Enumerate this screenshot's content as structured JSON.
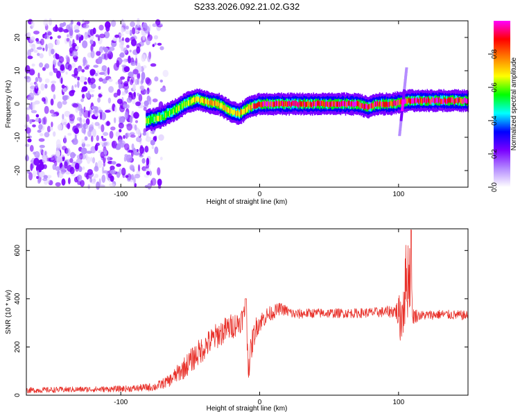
{
  "title": "S233.2026.092.21.02.G32",
  "chart_data": [
    {
      "type": "heatmap",
      "name": "spectrogram",
      "xlabel": "Height of straight line (km)",
      "ylabel": "Frequency (Hz)",
      "xlim": [
        -168,
        150
      ],
      "ylim": [
        -25,
        25
      ],
      "xticks": [
        -100,
        0,
        100
      ],
      "xtick_labels": [
        "-100",
        "0",
        "100"
      ],
      "yticks": [
        -20,
        -10,
        0,
        10,
        20
      ],
      "ytick_labels": [
        "-20",
        "-10",
        "0",
        "10",
        "20"
      ],
      "ridge": {
        "x": [
          -82,
          -72,
          -62,
          -52,
          -45,
          -38,
          -30,
          -22,
          -15,
          -8,
          0,
          10,
          20,
          30,
          40,
          50,
          60,
          70,
          78,
          85,
          95,
          100,
          108,
          120,
          130,
          150
        ],
        "y": [
          -5,
          -4,
          -2,
          0.5,
          1.5,
          0.5,
          0,
          -2,
          -3,
          -1,
          0,
          0,
          0,
          0,
          0,
          0,
          0,
          0,
          -1,
          0,
          0,
          0.5,
          1,
          1,
          1,
          1
        ]
      },
      "bursts": [
        {
          "x": 102,
          "y_range": [
            -9,
            11
          ]
        }
      ],
      "colorbar": {
        "label": "Normalized spectral amplitude",
        "ticks": [
          0.0,
          0.2,
          0.4,
          0.6,
          0.8
        ],
        "tick_labels": [
          "0.0",
          "0.2",
          "0.4",
          "0.6",
          "0.8"
        ],
        "range": [
          0,
          1
        ],
        "colors": [
          "#ffffff",
          "#b58cff",
          "#7a00ff",
          "#0000ff",
          "#00ffff",
          "#00ff00",
          "#ffff00",
          "#ff8000",
          "#ff0000",
          "#ff00ff"
        ]
      }
    },
    {
      "type": "line",
      "name": "snr",
      "xlabel": "Height of straight line (km)",
      "ylabel": "SNR (10 * v/v)",
      "xlim": [
        -168,
        150
      ],
      "ylim": [
        0,
        690
      ],
      "xticks": [
        -100,
        0,
        100
      ],
      "xtick_labels": [
        "-100",
        "0",
        "100"
      ],
      "yticks": [
        0,
        200,
        400,
        600
      ],
      "ytick_labels": [
        "0",
        "200",
        "400",
        "600"
      ],
      "color": "#e8312a",
      "series": [
        {
          "name": "SNR",
          "x": [
            -168,
            -150,
            -130,
            -110,
            -90,
            -75,
            -65,
            -55,
            -45,
            -38,
            -30,
            -22,
            -15,
            -10,
            -8,
            -5,
            -2,
            5,
            15,
            25,
            35,
            50,
            70,
            90,
            98,
            102,
            105,
            108,
            110,
            115,
            130,
            150
          ],
          "y": [
            20,
            22,
            24,
            25,
            28,
            35,
            60,
            110,
            170,
            210,
            250,
            280,
            300,
            340,
            120,
            230,
            290,
            330,
            360,
            335,
            340,
            340,
            340,
            345,
            350,
            320,
            460,
            520,
            330,
            330,
            335,
            330
          ],
          "noise": [
            12,
            12,
            12,
            12,
            14,
            18,
            25,
            45,
            55,
            55,
            55,
            55,
            50,
            50,
            60,
            55,
            45,
            35,
            25,
            22,
            20,
            20,
            20,
            22,
            30,
            120,
            170,
            180,
            40,
            20,
            20,
            20
          ]
        }
      ]
    }
  ]
}
